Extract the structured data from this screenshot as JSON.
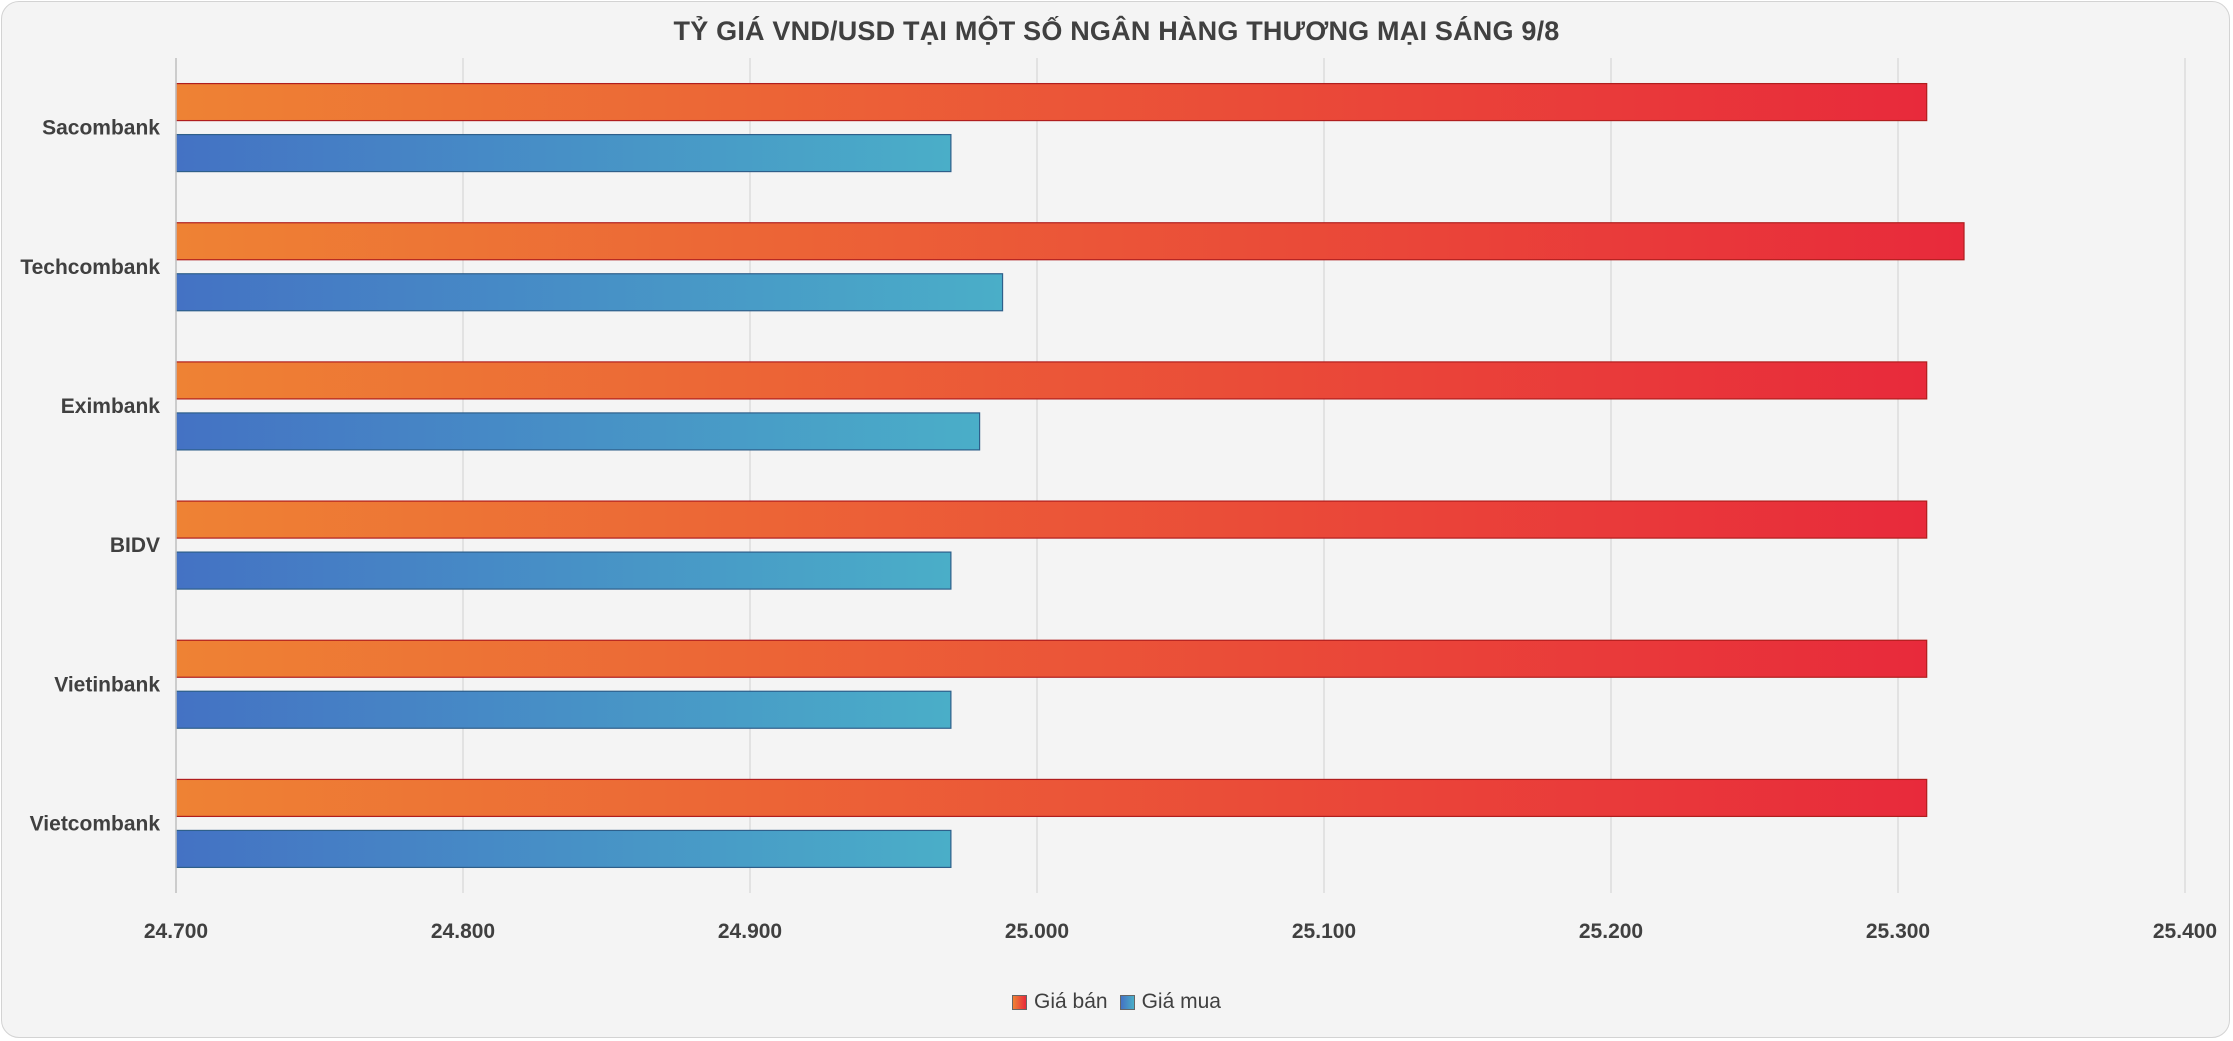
{
  "chart_data": {
    "type": "bar",
    "orientation": "horizontal",
    "title": "TỶ GIÁ VND/USD TẠI MỘT SỐ NGÂN HÀNG THƯƠNG MẠI SÁNG 9/8",
    "categories": [
      "Sacombank",
      "Techcombank",
      "Eximbank",
      "BIDV",
      "Vietinbank",
      "Vietcombank"
    ],
    "series": [
      {
        "name": "Giá bán",
        "values": [
          25310,
          25323,
          25310,
          25310,
          25310,
          25310
        ],
        "gradient": [
          "#ee8234",
          "#e82a3b"
        ],
        "border": "#b01e1e"
      },
      {
        "name": "Giá mua",
        "values": [
          24970,
          24988,
          24980,
          24970,
          24970,
          24970
        ],
        "gradient": [
          "#4472c4",
          "#4aaec8"
        ],
        "border": "#2e5f8a"
      }
    ],
    "xlim": [
      24700,
      25400
    ],
    "xticks": [
      24700,
      24800,
      24900,
      25000,
      25100,
      25200,
      25300,
      25400
    ],
    "xtick_labels": [
      "24.700",
      "24.800",
      "24.900",
      "25.000",
      "25.100",
      "25.200",
      "25.300",
      "25.400"
    ],
    "grid": true,
    "legend_position": "bottom"
  }
}
